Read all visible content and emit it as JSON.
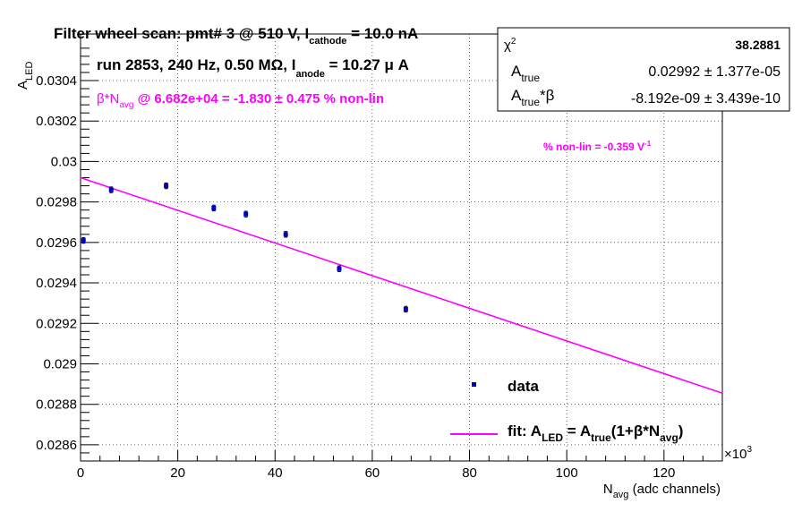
{
  "title": {
    "main": "Filter wheel scan: pmt#   3 @   510 V, I",
    "sub": "cathode",
    "tail": " = 10.0 nA"
  },
  "run_line": {
    "main": "run 2853, 240 Hz, 0.50 MΩ, I",
    "sub": "anode",
    "tail": " = 10.27 μ A"
  },
  "beta_line": {
    "beta": "β*N",
    "sub": "avg",
    "tail": " @ 6.682e+04 = -1.830 ± 0.475 % non-lin"
  },
  "nonlin_line": {
    "main": "% non-lin = -0.359 V",
    "sup": "-1"
  },
  "stats": {
    "chi2_label": "χ",
    "chi2_sup": "2",
    "chi2_value": "38.2881",
    "atrue_label": "A",
    "atrue_sub": "true",
    "atrue_value": "0.02992 ± 1.377e-05",
    "ab_label": "A",
    "ab_sub": "true",
    "ab_tail": "*β",
    "ab_value": "-8.192e-09 ± 3.439e-10"
  },
  "legend": {
    "data_label": "data",
    "fit_main": "fit: A",
    "fit_sub1": "LED",
    "fit_mid": " = A",
    "fit_sub2": "true",
    "fit_mid2": "(1+β*N",
    "fit_sub3": "avg",
    "fit_end": ")"
  },
  "axes": {
    "ylabel_main": "A",
    "ylabel_sub": "LED",
    "xlabel_main": "N",
    "xlabel_sub": "avg",
    "xlabel_tail": " (adc channels)",
    "x_multiplier": "×10",
    "x_multiplier_sup": "3"
  },
  "colors": {
    "data": "#0000cc",
    "fit": "#ff00ff",
    "grid": "#000000"
  },
  "chart_data": {
    "type": "scatter",
    "xlim": [
      0,
      132
    ],
    "ylim": [
      0.02852,
      0.03063
    ],
    "x_ticks": [
      0,
      20,
      40,
      60,
      80,
      100,
      120
    ],
    "x_tick_labels": [
      "0",
      "20",
      "40",
      "60",
      "80",
      "100",
      "120"
    ],
    "y_ticks": [
      0.0286,
      0.0288,
      0.029,
      0.0292,
      0.0294,
      0.0296,
      0.0298,
      0.03,
      0.0302,
      0.0304
    ],
    "y_tick_labels": [
      "0.0286",
      "0.0288",
      "0.029",
      "0.0292",
      "0.0294",
      "0.0296",
      "0.0298",
      "0.03",
      "0.0302",
      "0.0304"
    ],
    "grid": true,
    "legend_position": "bottom-right",
    "series": [
      {
        "name": "data",
        "x": [
          0.6,
          6.3,
          17.6,
          27.4,
          34.0,
          42.2,
          53.2,
          66.9
        ],
        "y": [
          0.02961,
          0.02986,
          0.02988,
          0.02977,
          0.02974,
          0.02964,
          0.02947,
          0.02927
        ],
        "yerr": [
          1.4e-05,
          1.4e-05,
          1.4e-05,
          1.4e-05,
          1.4e-05,
          1.4e-05,
          1.4e-05,
          1.4e-05
        ]
      },
      {
        "name": "fit",
        "type": "line",
        "x": [
          0,
          132
        ],
        "y": [
          0.02992,
          0.028855
        ]
      }
    ]
  }
}
